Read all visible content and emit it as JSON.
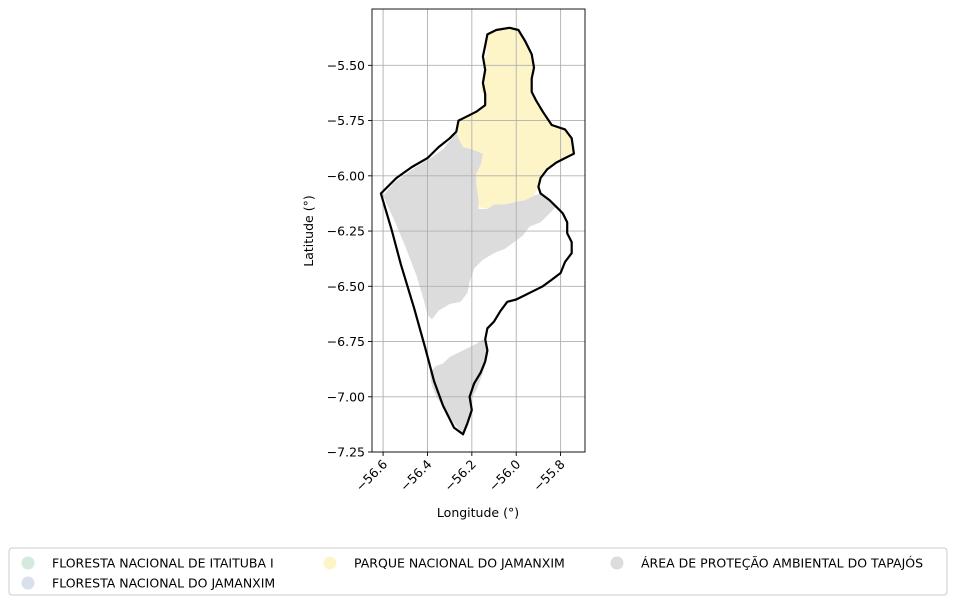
{
  "chart_data": {
    "type": "map",
    "xlabel": "Longitude (°)",
    "ylabel": "Latitude (°)",
    "xlim": [
      -56.65,
      -55.69
    ],
    "ylim": [
      -7.25,
      -5.245
    ],
    "grid": true,
    "legend_placement": "bottom",
    "x_ticks": [
      {
        "value": -56.6,
        "label": "−56.6"
      },
      {
        "value": -56.4,
        "label": "−56.4"
      },
      {
        "value": -56.2,
        "label": "−56.2"
      },
      {
        "value": -56.0,
        "label": "−56.0"
      },
      {
        "value": -55.8,
        "label": "−55.8"
      }
    ],
    "y_ticks": [
      {
        "value": -5.5,
        "label": "−5.50"
      },
      {
        "value": -5.75,
        "label": "−5.75"
      },
      {
        "value": -6.0,
        "label": "−6.00"
      },
      {
        "value": -6.25,
        "label": "−6.25"
      },
      {
        "value": -6.5,
        "label": "−6.50"
      },
      {
        "value": -6.75,
        "label": "−6.75"
      },
      {
        "value": -7.0,
        "label": "−7.00"
      },
      {
        "value": -7.25,
        "label": "−7.25"
      }
    ],
    "series": [
      {
        "name": "FLORESTA NACIONAL DE ITAITUBA I",
        "color": "#d5eadf"
      },
      {
        "name": "FLORESTA NACIONAL DO JAMANXIM",
        "color": "#dadfee"
      },
      {
        "name": "PARQUE NACIONAL DO JAMANXIM",
        "color": "#fdf5c8"
      },
      {
        "name": "ÁREA DE PROTEÇÃO AMBIENTAL DO TAPAJÓS",
        "color": "#dcdcdc"
      }
    ],
    "regions": [
      {
        "series": "PARQUE NACIONAL DO JAMANXIM",
        "coords": [
          [
            -56.13,
            -5.36
          ],
          [
            -56.09,
            -5.34
          ],
          [
            -56.03,
            -5.33
          ],
          [
            -55.99,
            -5.34
          ],
          [
            -55.96,
            -5.39
          ],
          [
            -55.93,
            -5.45
          ],
          [
            -55.92,
            -5.51
          ],
          [
            -55.93,
            -5.56
          ],
          [
            -55.93,
            -5.62
          ],
          [
            -55.91,
            -5.66
          ],
          [
            -55.88,
            -5.71
          ],
          [
            -55.84,
            -5.77
          ],
          [
            -55.78,
            -5.79
          ],
          [
            -55.75,
            -5.83
          ],
          [
            -55.74,
            -5.9
          ],
          [
            -55.78,
            -5.92
          ],
          [
            -55.82,
            -5.94
          ],
          [
            -55.86,
            -5.97
          ],
          [
            -55.89,
            -6.01
          ],
          [
            -55.9,
            -6.05
          ],
          [
            -55.92,
            -6.09
          ],
          [
            -55.96,
            -6.11
          ],
          [
            -56.01,
            -6.12
          ],
          [
            -56.05,
            -6.13
          ],
          [
            -56.1,
            -6.13
          ],
          [
            -56.13,
            -6.15
          ],
          [
            -56.17,
            -6.14
          ],
          [
            -56.17,
            -6.1
          ],
          [
            -56.18,
            -6.04
          ],
          [
            -56.18,
            -5.99
          ],
          [
            -56.16,
            -5.95
          ],
          [
            -56.15,
            -5.9
          ],
          [
            -56.2,
            -5.88
          ],
          [
            -56.24,
            -5.87
          ],
          [
            -56.26,
            -5.83
          ],
          [
            -56.27,
            -5.79
          ],
          [
            -56.26,
            -5.76
          ],
          [
            -56.22,
            -5.73
          ],
          [
            -56.17,
            -5.71
          ],
          [
            -56.13,
            -5.68
          ],
          [
            -56.14,
            -5.64
          ],
          [
            -56.16,
            -5.61
          ],
          [
            -56.15,
            -5.57
          ],
          [
            -56.14,
            -5.52
          ],
          [
            -56.15,
            -5.48
          ],
          [
            -56.13,
            -5.45
          ],
          [
            -56.14,
            -5.4
          ],
          [
            -56.13,
            -5.36
          ]
        ]
      },
      {
        "series": "ÁREA DE PROTEÇÃO AMBIENTAL DO TAPAJÓS",
        "coords": [
          [
            -56.29,
            -5.83
          ],
          [
            -56.27,
            -5.79
          ],
          [
            -56.26,
            -5.83
          ],
          [
            -56.24,
            -5.87
          ],
          [
            -56.2,
            -5.88
          ],
          [
            -56.15,
            -5.9
          ],
          [
            -56.16,
            -5.95
          ],
          [
            -56.18,
            -5.99
          ],
          [
            -56.18,
            -6.04
          ],
          [
            -56.17,
            -6.1
          ],
          [
            -56.17,
            -6.15
          ],
          [
            -56.13,
            -6.15
          ],
          [
            -56.1,
            -6.13
          ],
          [
            -56.05,
            -6.13
          ],
          [
            -56.01,
            -6.12
          ],
          [
            -55.96,
            -6.11
          ],
          [
            -55.92,
            -6.09
          ],
          [
            -55.89,
            -6.08
          ],
          [
            -55.85,
            -6.11
          ],
          [
            -55.82,
            -6.14
          ],
          [
            -55.86,
            -6.18
          ],
          [
            -55.89,
            -6.21
          ],
          [
            -55.94,
            -6.23
          ],
          [
            -55.97,
            -6.27
          ],
          [
            -56.01,
            -6.3
          ],
          [
            -56.05,
            -6.33
          ],
          [
            -56.1,
            -6.35
          ],
          [
            -56.15,
            -6.38
          ],
          [
            -56.19,
            -6.42
          ],
          [
            -56.21,
            -6.48
          ],
          [
            -56.22,
            -6.53
          ],
          [
            -56.25,
            -6.57
          ],
          [
            -56.3,
            -6.58
          ],
          [
            -56.35,
            -6.61
          ],
          [
            -56.38,
            -6.65
          ],
          [
            -56.4,
            -6.63
          ],
          [
            -56.42,
            -6.55
          ],
          [
            -56.45,
            -6.45
          ],
          [
            -56.5,
            -6.32
          ],
          [
            -56.55,
            -6.2
          ],
          [
            -56.6,
            -6.09
          ],
          [
            -56.55,
            -6.03
          ],
          [
            -56.48,
            -5.98
          ],
          [
            -56.42,
            -5.94
          ],
          [
            -56.37,
            -5.91
          ],
          [
            -56.33,
            -5.88
          ],
          [
            -56.29,
            -5.83
          ]
        ]
      },
      {
        "series": "ÁREA DE PROTEÇÃO AMBIENTAL DO TAPAJÓS",
        "coords": [
          [
            -56.24,
            -7.17
          ],
          [
            -56.22,
            -7.13
          ],
          [
            -56.2,
            -7.08
          ],
          [
            -56.21,
            -7.02
          ],
          [
            -56.18,
            -6.97
          ],
          [
            -56.16,
            -6.92
          ],
          [
            -56.14,
            -6.86
          ],
          [
            -56.13,
            -6.81
          ],
          [
            -56.13,
            -6.76
          ],
          [
            -56.15,
            -6.74
          ],
          [
            -56.18,
            -6.76
          ],
          [
            -56.22,
            -6.78
          ],
          [
            -56.26,
            -6.8
          ],
          [
            -56.3,
            -6.82
          ],
          [
            -56.33,
            -6.85
          ],
          [
            -56.36,
            -6.86
          ],
          [
            -56.39,
            -6.89
          ],
          [
            -56.38,
            -6.95
          ],
          [
            -56.36,
            -7.0
          ],
          [
            -56.32,
            -7.06
          ],
          [
            -56.28,
            -7.12
          ],
          [
            -56.24,
            -7.17
          ]
        ]
      }
    ],
    "boundary": [
      [
        -56.13,
        -5.36
      ],
      [
        -56.09,
        -5.34
      ],
      [
        -56.03,
        -5.33
      ],
      [
        -55.99,
        -5.34
      ],
      [
        -55.96,
        -5.39
      ],
      [
        -55.93,
        -5.45
      ],
      [
        -55.92,
        -5.51
      ],
      [
        -55.93,
        -5.56
      ],
      [
        -55.93,
        -5.62
      ],
      [
        -55.91,
        -5.66
      ],
      [
        -55.88,
        -5.71
      ],
      [
        -55.84,
        -5.77
      ],
      [
        -55.78,
        -5.79
      ],
      [
        -55.75,
        -5.83
      ],
      [
        -55.74,
        -5.9
      ],
      [
        -55.78,
        -5.92
      ],
      [
        -55.82,
        -5.94
      ],
      [
        -55.86,
        -5.97
      ],
      [
        -55.89,
        -6.01
      ],
      [
        -55.9,
        -6.05
      ],
      [
        -55.89,
        -6.08
      ],
      [
        -55.85,
        -6.11
      ],
      [
        -55.82,
        -6.14
      ],
      [
        -55.79,
        -6.17
      ],
      [
        -55.77,
        -6.21
      ],
      [
        -55.77,
        -6.26
      ],
      [
        -55.75,
        -6.3
      ],
      [
        -55.75,
        -6.35
      ],
      [
        -55.78,
        -6.39
      ],
      [
        -55.8,
        -6.44
      ],
      [
        -55.84,
        -6.47
      ],
      [
        -55.88,
        -6.5
      ],
      [
        -55.92,
        -6.52
      ],
      [
        -55.96,
        -6.54
      ],
      [
        -56.0,
        -6.56
      ],
      [
        -56.04,
        -6.57
      ],
      [
        -56.07,
        -6.61
      ],
      [
        -56.1,
        -6.66
      ],
      [
        -56.13,
        -6.69
      ],
      [
        -56.14,
        -6.74
      ],
      [
        -56.13,
        -6.79
      ],
      [
        -56.14,
        -6.84
      ],
      [
        -56.16,
        -6.89
      ],
      [
        -56.19,
        -6.94
      ],
      [
        -56.21,
        -7.0
      ],
      [
        -56.2,
        -7.06
      ],
      [
        -56.22,
        -7.12
      ],
      [
        -56.24,
        -7.17
      ],
      [
        -56.28,
        -7.14
      ],
      [
        -56.33,
        -7.04
      ],
      [
        -56.37,
        -6.93
      ],
      [
        -56.41,
        -6.78
      ],
      [
        -56.46,
        -6.6
      ],
      [
        -56.52,
        -6.4
      ],
      [
        -56.56,
        -6.25
      ],
      [
        -56.61,
        -6.08
      ],
      [
        -56.54,
        -6.01
      ],
      [
        -56.47,
        -5.96
      ],
      [
        -56.4,
        -5.92
      ],
      [
        -56.35,
        -5.87
      ],
      [
        -56.3,
        -5.83
      ],
      [
        -56.27,
        -5.8
      ],
      [
        -56.26,
        -5.75
      ],
      [
        -56.22,
        -5.73
      ],
      [
        -56.18,
        -5.71
      ],
      [
        -56.14,
        -5.68
      ],
      [
        -56.14,
        -5.63
      ],
      [
        -56.15,
        -5.58
      ],
      [
        -56.14,
        -5.52
      ],
      [
        -56.15,
        -5.46
      ],
      [
        -56.14,
        -5.41
      ],
      [
        -56.13,
        -5.36
      ]
    ]
  }
}
